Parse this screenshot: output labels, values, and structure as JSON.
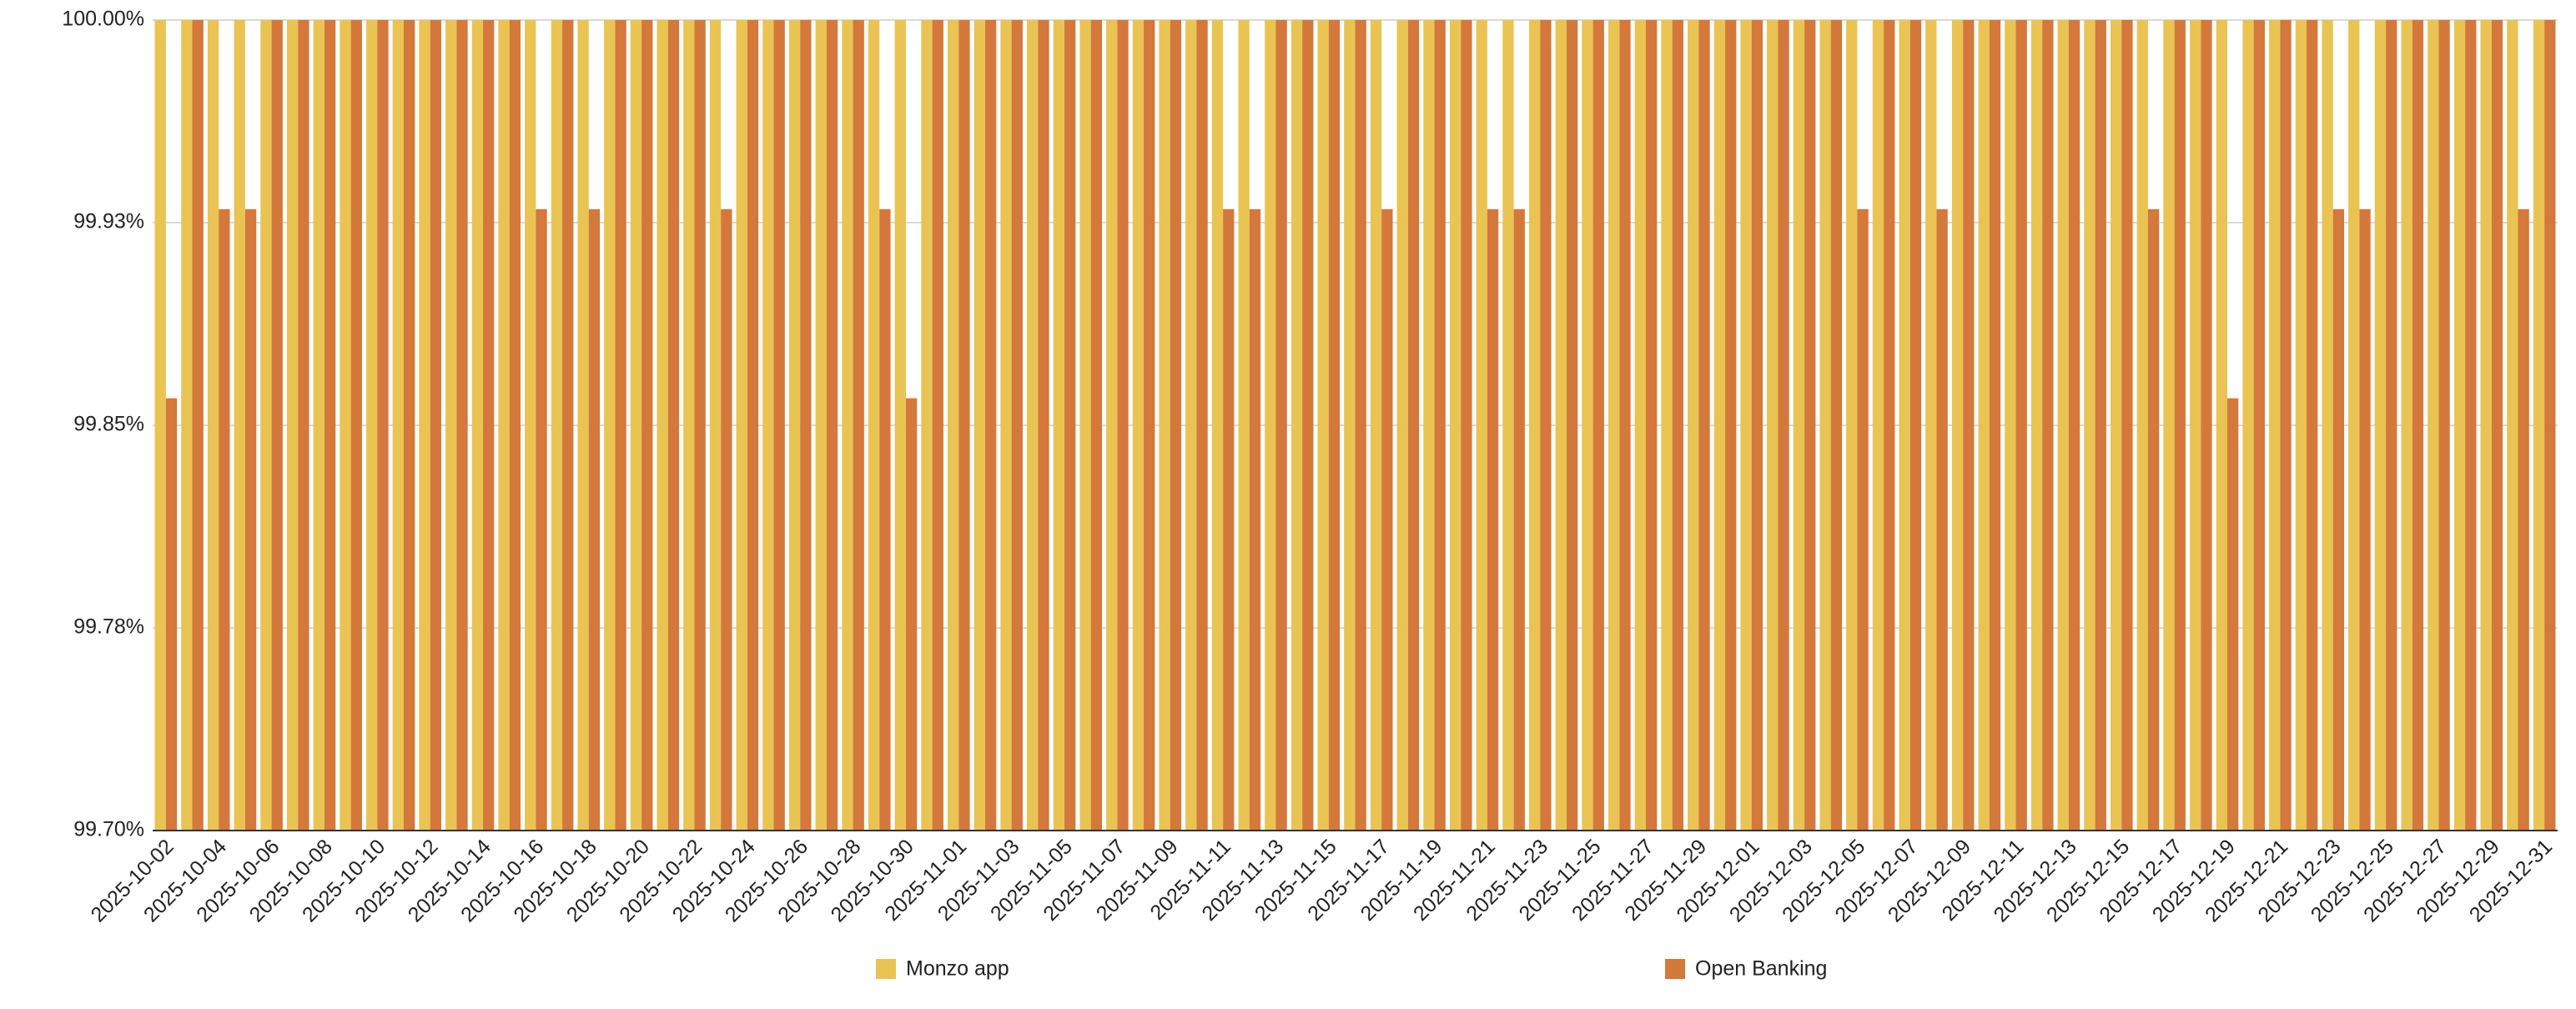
{
  "chart_data": {
    "type": "bar",
    "categories": [
      "2025-10-02",
      null,
      "2025-10-04",
      null,
      "2025-10-06",
      null,
      "2025-10-08",
      null,
      "2025-10-10",
      null,
      "2025-10-12",
      null,
      "2025-10-14",
      null,
      "2025-10-16",
      null,
      "2025-10-18",
      null,
      "2025-10-20",
      null,
      "2025-10-22",
      null,
      "2025-10-24",
      null,
      "2025-10-26",
      null,
      "2025-10-28",
      null,
      "2025-10-30",
      null,
      "2025-11-01",
      null,
      "2025-11-03",
      null,
      "2025-11-05",
      null,
      "2025-11-07",
      null,
      "2025-11-09",
      null,
      "2025-11-11",
      null,
      "2025-11-13",
      null,
      "2025-11-15",
      null,
      "2025-11-17",
      null,
      "2025-11-19",
      null,
      "2025-11-21",
      null,
      "2025-11-23",
      null,
      "2025-11-25",
      null,
      "2025-11-27",
      null,
      "2025-11-29",
      null,
      "2025-12-01",
      null,
      "2025-12-03",
      null,
      "2025-12-05",
      null,
      "2025-12-07",
      null,
      "2025-12-09",
      null,
      "2025-12-11",
      null,
      "2025-12-13",
      null,
      "2025-12-15",
      null,
      "2025-12-17",
      null,
      "2025-12-19",
      null,
      "2025-12-21",
      null,
      "2025-12-23",
      null,
      "2025-12-25",
      null,
      "2025-12-27",
      null,
      "2025-12-29",
      null,
      "2025-12-31"
    ],
    "series": [
      {
        "name": "Monzo app",
        "color": "#e9c453",
        "values": [
          100,
          100,
          100,
          100,
          100,
          100,
          100,
          100,
          100,
          100,
          100,
          100,
          100,
          100,
          100,
          100,
          100,
          100,
          100,
          100,
          100,
          100,
          100,
          100,
          100,
          100,
          100,
          100,
          100,
          100,
          100,
          100,
          100,
          100,
          100,
          100,
          100,
          100,
          100,
          100,
          100,
          100,
          100,
          100,
          100,
          100,
          100,
          100,
          100,
          100,
          100,
          100,
          100,
          100,
          100,
          100,
          100,
          100,
          100,
          100,
          100,
          100,
          100,
          100,
          100,
          100,
          100,
          100,
          100,
          100,
          100,
          100,
          100,
          100,
          100,
          100,
          100,
          100,
          100,
          100,
          100,
          100,
          100,
          100,
          100,
          100,
          100,
          100,
          100,
          100,
          100
        ]
      },
      {
        "name": "Open Banking",
        "color": "#d4783b",
        "values": [
          99.86,
          100,
          99.93,
          99.93,
          100,
          100,
          100,
          100,
          100,
          100,
          100,
          100,
          100,
          100,
          99.93,
          100,
          99.93,
          100,
          100,
          100,
          100,
          99.93,
          100,
          100,
          100,
          100,
          100,
          99.93,
          99.86,
          100,
          100,
          100,
          100,
          100,
          100,
          100,
          100,
          100,
          100,
          100,
          99.93,
          99.93,
          100,
          100,
          100,
          100,
          99.93,
          100,
          100,
          100,
          99.93,
          99.93,
          100,
          100,
          100,
          100,
          100,
          100,
          100,
          100,
          100,
          100,
          100,
          100,
          99.93,
          100,
          100,
          99.93,
          100,
          100,
          100,
          100,
          100,
          100,
          100,
          99.93,
          100,
          100,
          99.86,
          100,
          100,
          100,
          99.93,
          99.93,
          100,
          100,
          100,
          100,
          100,
          99.93,
          100
        ]
      }
    ],
    "ylim": [
      99.7,
      100
    ],
    "yticks": [
      {
        "value": 99.7,
        "label": "99.70%"
      },
      {
        "value": 99.775,
        "label": "99.78%"
      },
      {
        "value": 99.85,
        "label": "99.85%"
      },
      {
        "value": 99.925,
        "label": "99.93%"
      },
      {
        "value": 100,
        "label": "100.00%"
      }
    ],
    "grid": true,
    "legend": "bottom"
  }
}
